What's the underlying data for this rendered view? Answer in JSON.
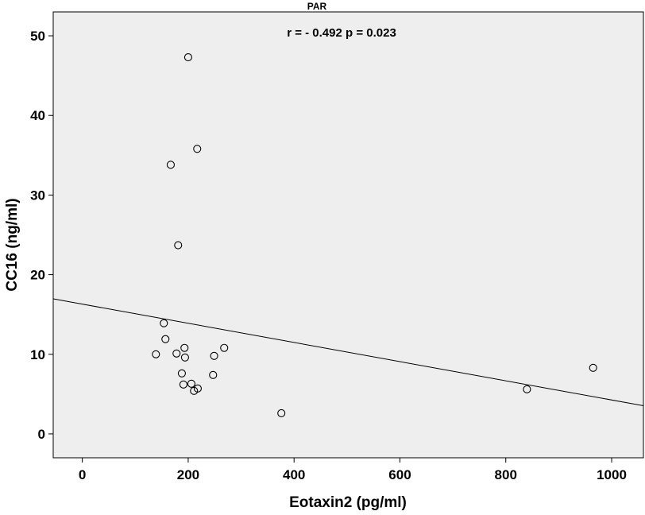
{
  "chart_data": {
    "type": "scatter",
    "title": "PAR",
    "annotation": "r = - 0.492  p = 0.023",
    "xlabel": "Eotaxin2 (pg/ml)",
    "ylabel": "CC16 (ng/ml)",
    "xlim": [
      -55,
      1060
    ],
    "ylim": [
      -3,
      53
    ],
    "xticks": [
      0,
      200,
      400,
      600,
      800,
      1000
    ],
    "yticks": [
      0,
      10,
      20,
      30,
      40,
      50
    ],
    "grid": false,
    "background_color": "#eeeeee",
    "marker": "open-circle",
    "points": [
      {
        "x": 200,
        "y": 47.3
      },
      {
        "x": 217,
        "y": 35.8
      },
      {
        "x": 167,
        "y": 33.8
      },
      {
        "x": 181,
        "y": 23.7
      },
      {
        "x": 154,
        "y": 13.9
      },
      {
        "x": 157,
        "y": 11.9
      },
      {
        "x": 193,
        "y": 10.8
      },
      {
        "x": 268,
        "y": 10.8
      },
      {
        "x": 139,
        "y": 10.0
      },
      {
        "x": 178,
        "y": 10.1
      },
      {
        "x": 194,
        "y": 9.6
      },
      {
        "x": 249,
        "y": 9.8
      },
      {
        "x": 188,
        "y": 7.6
      },
      {
        "x": 247,
        "y": 7.4
      },
      {
        "x": 191,
        "y": 6.2
      },
      {
        "x": 206,
        "y": 6.3
      },
      {
        "x": 218,
        "y": 5.7
      },
      {
        "x": 211,
        "y": 5.4
      },
      {
        "x": 376,
        "y": 2.6
      },
      {
        "x": 840,
        "y": 5.6
      },
      {
        "x": 965,
        "y": 8.3
      }
    ],
    "fit_line": {
      "intercept": 16.3,
      "slope": -0.01204
    }
  }
}
